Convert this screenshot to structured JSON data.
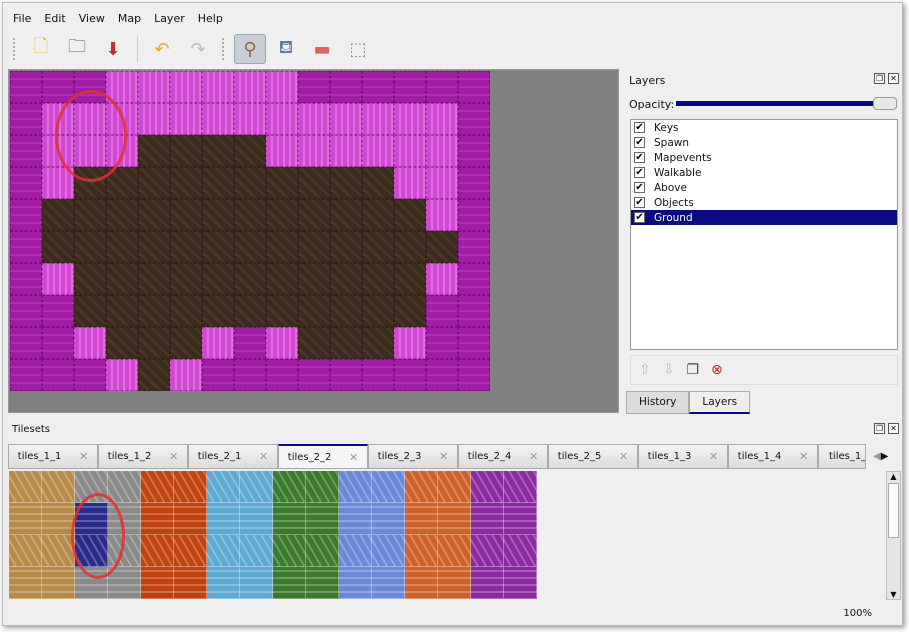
{
  "menu": [
    "File",
    "Edit",
    "View",
    "Map",
    "Layer",
    "Help"
  ],
  "toolbar": [
    {
      "icon": "new-map-icon",
      "glyph": "🗋"
    },
    {
      "icon": "open-icon",
      "glyph": "🗀"
    },
    {
      "icon": "save-icon",
      "glyph": "⬇"
    },
    {
      "icon": "undo-icon",
      "glyph": "↶"
    },
    {
      "icon": "redo-icon",
      "glyph": "↷"
    },
    {
      "icon": "stamp-brush-icon",
      "glyph": "⚲",
      "active": true
    },
    {
      "icon": "bucket-fill-icon",
      "glyph": "⛾"
    },
    {
      "icon": "eraser-icon",
      "glyph": "▬"
    },
    {
      "icon": "rect-select-icon",
      "glyph": "⬚"
    }
  ],
  "map": {
    "rows": [
      "PPPLLLLLLPPPPPP",
      "PLLLLLLLLLLLLLP",
      "PLLLDDDDLLLLLLP",
      "PLDDDDDDDDDDLLP",
      "PDDDDDDDDDDDDLP",
      "PDDDDDDDDDDDDDP",
      "PLDDDDDDDDDDDLP",
      "PPDDDDDDDDDDDPP",
      "PPLDDDLPLDDDLPP",
      "PPPLDLPPPPPPPPP"
    ],
    "colors": {
      "P": "#a21ca6",
      "L": "#d247d4",
      "D": "#3a2a20"
    }
  },
  "layers_panel": {
    "title": "Layers",
    "opacity_label": "Opacity:",
    "opacity": 1.0,
    "layers": [
      {
        "name": "Keys",
        "visible": true
      },
      {
        "name": "Spawn",
        "visible": true
      },
      {
        "name": "Mapevents",
        "visible": true
      },
      {
        "name": "Walkable",
        "visible": true
      },
      {
        "name": "Above",
        "visible": true
      },
      {
        "name": "Objects",
        "visible": true
      },
      {
        "name": "Ground",
        "visible": true,
        "selected": true
      }
    ],
    "tabs": [
      "History",
      "Layers"
    ],
    "active_tab": "Layers"
  },
  "tilesets": {
    "title": "Tilesets",
    "tabs": [
      "tiles_1_1",
      "tiles_1_2",
      "tiles_2_1",
      "tiles_2_2",
      "tiles_2_3",
      "tiles_2_4",
      "tiles_2_5",
      "tiles_1_3",
      "tiles_1_4",
      "tiles_1_"
    ],
    "active_tab": "tiles_2_2",
    "palette": [
      "#b58a48",
      "#8a8a8a",
      "#c0400e",
      "#5fa8d0",
      "#3a7a2a",
      "#6a8ad8",
      "#d0602a",
      "#8a2aa0"
    ],
    "selected_color": "#2a2a8a"
  },
  "status": {
    "zoom": "100%"
  }
}
